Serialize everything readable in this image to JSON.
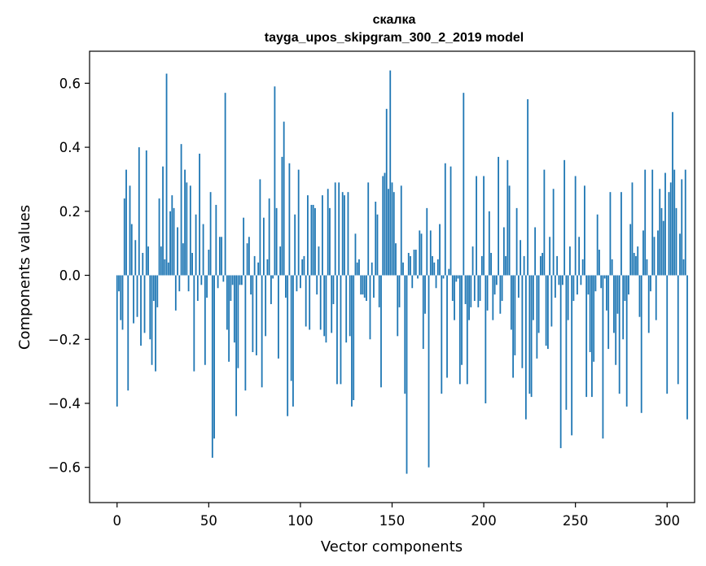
{
  "chart_data": {
    "type": "bar",
    "title": "скалка",
    "subtitle": "tayga_upos_skipgram_300_2_2019 model",
    "xlabel": "Vector components",
    "ylabel": "Components values",
    "xlim": [
      -15,
      315
    ],
    "ylim": [
      -0.71,
      0.7
    ],
    "xticks": [
      0,
      50,
      100,
      150,
      200,
      250,
      300
    ],
    "yticks": [
      -0.6,
      -0.4,
      -0.2,
      0.0,
      0.2,
      0.4,
      0.6
    ],
    "ytick_labels": [
      "−0.6",
      "−0.4",
      "−0.2",
      "0.0",
      "0.2",
      "0.4",
      "0.6"
    ],
    "bar_color": "#1f77b4",
    "series": [
      {
        "name": "components",
        "values": [
          -0.41,
          -0.05,
          -0.14,
          -0.17,
          0.24,
          0.33,
          -0.36,
          0.28,
          0.16,
          -0.15,
          0.11,
          -0.13,
          0.4,
          -0.22,
          0.07,
          -0.18,
          0.39,
          0.09,
          -0.2,
          -0.28,
          -0.08,
          -0.3,
          -0.1,
          0.24,
          0.09,
          0.34,
          0.05,
          0.63,
          0.04,
          0.2,
          0.25,
          0.21,
          -0.11,
          0.15,
          -0.05,
          0.41,
          0.1,
          0.33,
          0.29,
          -0.05,
          0.28,
          0.07,
          -0.3,
          0.19,
          -0.08,
          0.38,
          -0.03,
          0.16,
          -0.28,
          -0.07,
          0.08,
          0.26,
          -0.57,
          -0.51,
          0.22,
          -0.04,
          0.12,
          0.12,
          -0.02,
          0.57,
          -0.17,
          -0.27,
          -0.08,
          -0.03,
          -0.21,
          -0.44,
          -0.29,
          -0.03,
          -0.03,
          0.18,
          -0.36,
          0.1,
          0.12,
          -0.06,
          -0.24,
          0.06,
          -0.25,
          0.04,
          0.3,
          -0.35,
          0.18,
          -0.19,
          0.05,
          0.24,
          -0.09,
          -0.01,
          0.59,
          0.21,
          -0.26,
          0.09,
          0.37,
          0.48,
          -0.07,
          -0.44,
          0.35,
          -0.33,
          -0.41,
          0.19,
          -0.05,
          0.33,
          -0.04,
          0.05,
          0.06,
          -0.16,
          0.25,
          -0.17,
          0.22,
          0.22,
          0.21,
          -0.06,
          0.09,
          -0.17,
          0.25,
          -0.19,
          -0.21,
          0.27,
          0.21,
          -0.18,
          -0.09,
          0.29,
          -0.34,
          0.29,
          -0.34,
          0.26,
          0.25,
          -0.21,
          0.26,
          -0.19,
          -0.41,
          -0.39,
          0.13,
          0.04,
          0.05,
          -0.06,
          -0.06,
          -0.07,
          -0.08,
          0.29,
          -0.2,
          0.04,
          -0.07,
          0.23,
          0.19,
          -0.1,
          -0.35,
          0.31,
          0.32,
          0.52,
          0.27,
          0.64,
          0.29,
          0.26,
          0.1,
          -0.19,
          -0.1,
          0.28,
          0.04,
          -0.37,
          -0.62,
          0.07,
          0.06,
          -0.04,
          0.08,
          0.08,
          -0.01,
          0.14,
          0.13,
          -0.23,
          -0.12,
          0.21,
          -0.6,
          0.14,
          0.06,
          0.04,
          -0.04,
          0.05,
          0.16,
          -0.37,
          -0.01,
          0.35,
          -0.32,
          0.02,
          0.34,
          -0.08,
          -0.14,
          -0.02,
          -0.01,
          -0.34,
          -0.28,
          0.57,
          -0.09,
          -0.34,
          -0.14,
          -0.1,
          0.09,
          -0.08,
          0.31,
          -0.1,
          -0.08,
          0.06,
          0.31,
          -0.4,
          -0.11,
          0.2,
          0.07,
          -0.14,
          -0.06,
          -0.03,
          0.37,
          -0.12,
          -0.08,
          0.15,
          0.06,
          0.36,
          0.28,
          -0.17,
          -0.32,
          -0.25,
          0.21,
          -0.07,
          0.11,
          -0.29,
          0.06,
          -0.45,
          0.55,
          -0.37,
          -0.38,
          -0.14,
          0.15,
          -0.26,
          -0.18,
          0.06,
          0.07,
          0.33,
          -0.22,
          -0.23,
          0.12,
          -0.16,
          0.27,
          -0.07,
          0.06,
          -0.03,
          -0.54,
          -0.03,
          0.36,
          -0.42,
          -0.14,
          0.09,
          -0.5,
          -0.08,
          0.31,
          -0.06,
          0.12,
          -0.03,
          0.05,
          0.28,
          -0.38,
          -0.06,
          -0.24,
          -0.38,
          -0.27,
          -0.05,
          0.19,
          0.08,
          -0.04,
          -0.51,
          -0.01,
          -0.11,
          -0.23,
          0.26,
          0.05,
          -0.18,
          -0.28,
          -0.12,
          -0.37,
          0.26,
          -0.2,
          -0.08,
          -0.41,
          -0.06,
          0.16,
          0.29,
          0.07,
          0.06,
          0.09,
          -0.13,
          -0.43,
          0.14,
          0.33,
          0.05,
          -0.18,
          -0.05,
          0.33,
          0.12,
          -0.14,
          0.14,
          0.27,
          0.21,
          0.17,
          0.32,
          -0.37,
          0.26,
          0.29,
          0.51,
          0.33,
          0.21,
          -0.34,
          0.13,
          0.3,
          0.05,
          0.33,
          -0.45
        ]
      }
    ]
  }
}
